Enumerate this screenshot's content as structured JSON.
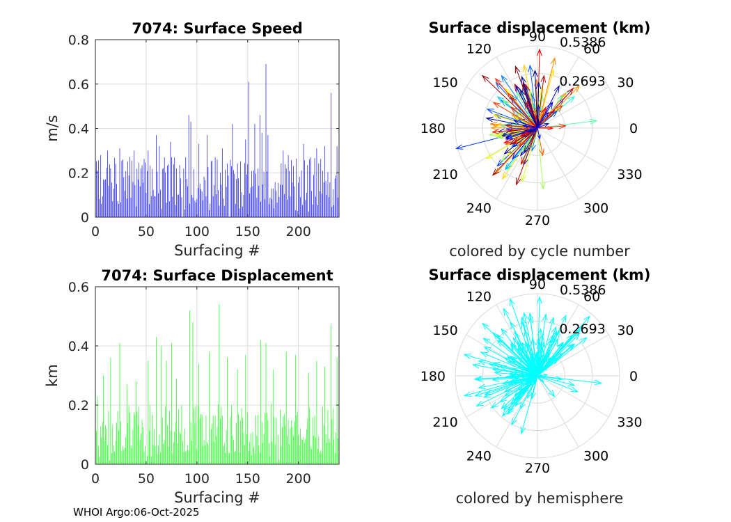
{
  "footer": "WHOI Argo:06-Oct-2025",
  "chart_data": [
    {
      "id": "speed",
      "type": "bar",
      "title": "7074: Surface Speed",
      "xlabel": "Surfacing #",
      "ylabel": "m/s",
      "xlim": [
        0,
        240
      ],
      "ylim": [
        0,
        0.8
      ],
      "xticks": [
        0,
        50,
        100,
        150,
        200
      ],
      "yticks": [
        0,
        0.2,
        0.4,
        0.6,
        0.8
      ],
      "ytick_labels": [
        "0",
        "0.2",
        "0.4",
        "0.6",
        "0.8"
      ],
      "color": "#0000ff",
      "grid": true,
      "seed": 7,
      "x": [
        2,
        5,
        8,
        12,
        15,
        20,
        24,
        27,
        32,
        38,
        45,
        52,
        60,
        63,
        68,
        74,
        80,
        92,
        94,
        102,
        110,
        118,
        125,
        135,
        148,
        151,
        157,
        162,
        164,
        168,
        170,
        185,
        190,
        195,
        205,
        212,
        218,
        226,
        232,
        238
      ],
      "values": [
        0.21,
        0.28,
        0.17,
        0.3,
        0.22,
        0.24,
        0.31,
        0.26,
        0.25,
        0.3,
        0.22,
        0.3,
        0.37,
        0.32,
        0.27,
        0.34,
        0.22,
        0.46,
        0.43,
        0.33,
        0.37,
        0.27,
        0.31,
        0.42,
        0.35,
        0.61,
        0.42,
        0.46,
        0.38,
        0.69,
        0.37,
        0.3,
        0.28,
        0.23,
        0.33,
        0.27,
        0.31,
        0.32,
        0.56,
        0.32
      ]
    },
    {
      "id": "disp",
      "type": "bar",
      "title": "7074: Surface Displacement",
      "xlabel": "Surfacing #",
      "ylabel": "km",
      "xlim": [
        0,
        240
      ],
      "ylim": [
        0,
        0.6
      ],
      "xticks": [
        0,
        50,
        100,
        150,
        200
      ],
      "yticks": [
        0,
        0.2,
        0.4,
        0.6
      ],
      "ytick_labels": [
        "0",
        "0.2",
        "0.4",
        "0.6"
      ],
      "color": "#00ff00",
      "grid": true,
      "seed": 13,
      "x": [
        2,
        8,
        15,
        24,
        31,
        40,
        52,
        60,
        65,
        70,
        75,
        80,
        93,
        96,
        102,
        112,
        122,
        130,
        140,
        148,
        163,
        168,
        175,
        188,
        197,
        210,
        218,
        226,
        232,
        238
      ],
      "values": [
        0.23,
        0.3,
        0.36,
        0.41,
        0.27,
        0.28,
        0.35,
        0.43,
        0.4,
        0.35,
        0.41,
        0.29,
        0.52,
        0.48,
        0.34,
        0.38,
        0.54,
        0.36,
        0.32,
        0.37,
        0.42,
        0.41,
        0.32,
        0.38,
        0.37,
        0.31,
        0.35,
        0.33,
        0.47,
        0.36
      ]
    },
    {
      "id": "compass1",
      "type": "polar-compass",
      "title": "Surface displacement (km)",
      "subtitle": "colored by cycle number",
      "rmax": 0.5386,
      "ring_labels": [
        "0.2693",
        "0.5386"
      ],
      "angle_labels": [
        "0",
        "30",
        "60",
        "90",
        "120",
        "150",
        "180",
        "210",
        "240",
        "270",
        "300",
        "330"
      ],
      "coloring": "cycle",
      "count": 240,
      "seed": 21
    },
    {
      "id": "compass2",
      "type": "polar-compass",
      "title": "Surface displacement (km)",
      "subtitle": "colored by hemisphere",
      "rmax": 0.5386,
      "ring_labels": [
        "0.2693",
        "0.5386"
      ],
      "angle_labels": [
        "0",
        "30",
        "60",
        "90",
        "120",
        "150",
        "180",
        "210",
        "240",
        "270",
        "300",
        "330"
      ],
      "coloring": "uniform",
      "color": "#00ffff",
      "count": 240,
      "seed": 21
    }
  ]
}
